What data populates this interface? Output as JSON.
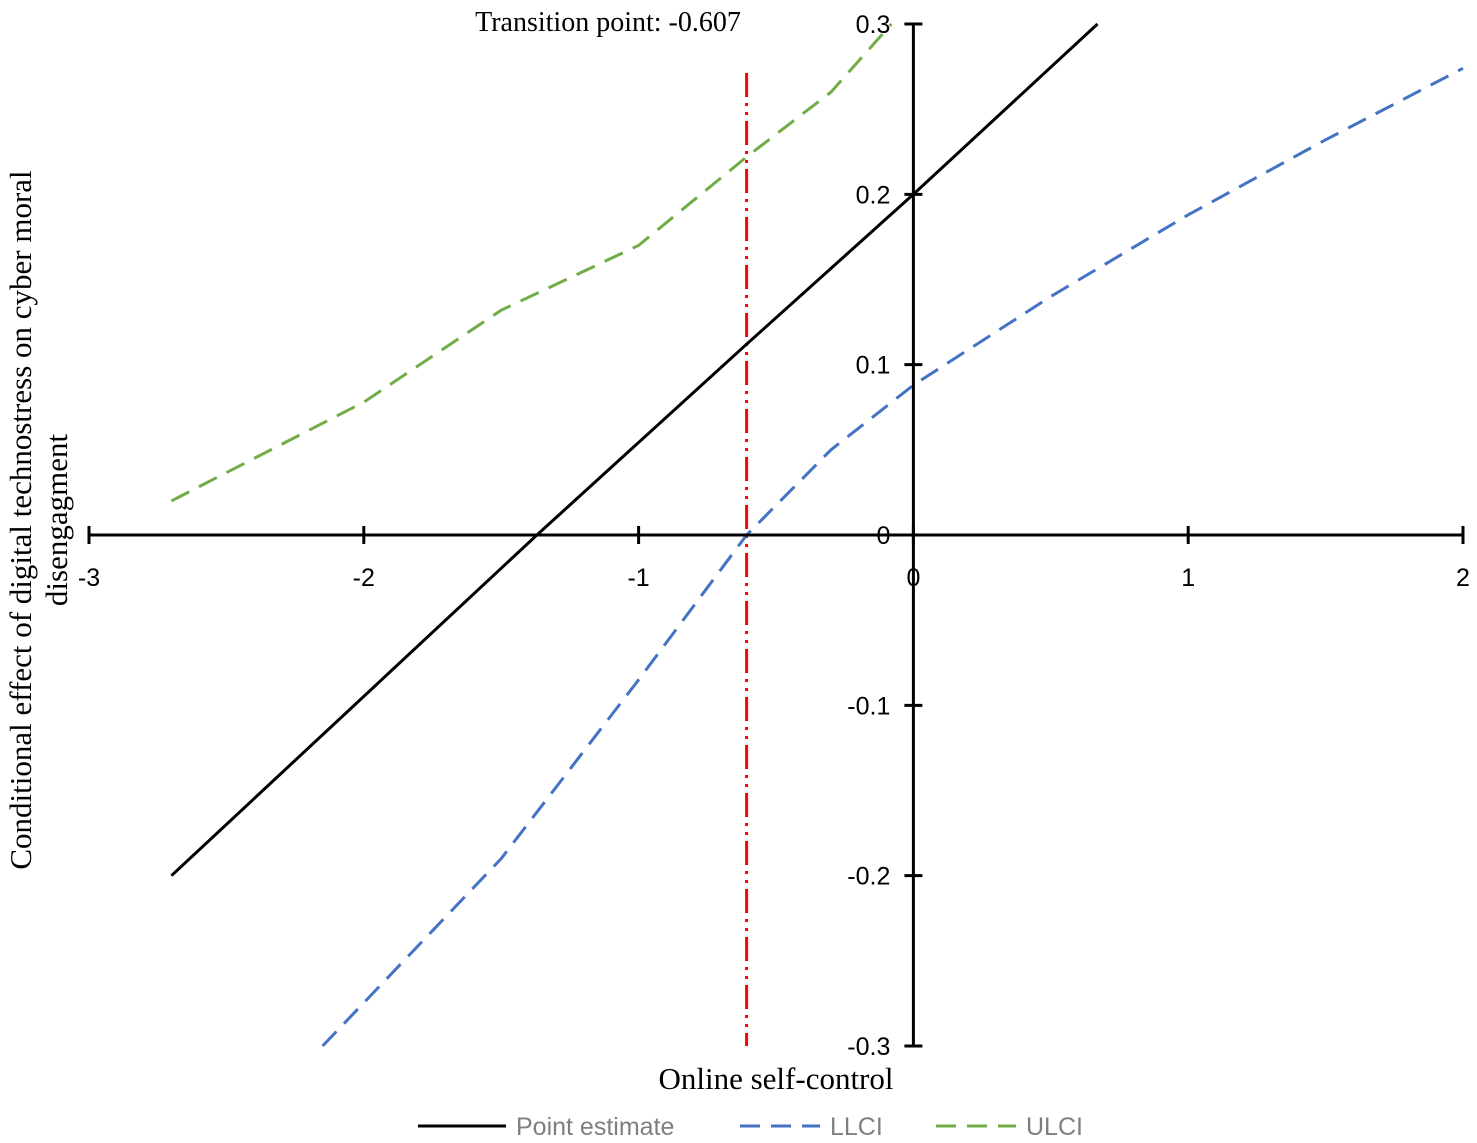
{
  "chart_data": {
    "type": "line",
    "xlabel": "Online self-control",
    "ylabel": "Conditional effect of digital technostress on cyber moral disengagment",
    "xlim": [
      -3,
      2
    ],
    "ylim": [
      -0.3,
      0.3
    ],
    "x_ticks": [
      -3,
      -2,
      -1,
      0,
      1,
      2
    ],
    "x_tick_labels": [
      "-3",
      "-2",
      "-1",
      "0",
      "1",
      "2"
    ],
    "y_ticks": [
      -0.3,
      -0.2,
      -0.1,
      0,
      0.1,
      0.2,
      0.3
    ],
    "y_tick_labels": [
      "-0.3",
      "-0.2",
      "-0.1",
      "0",
      "0.1",
      "0.2",
      "0.3"
    ],
    "grid": false,
    "legend_position": "bottom",
    "annotation": {
      "text": "Transition point: -0.607",
      "x": -0.607,
      "color": "#ff0000"
    },
    "series": [
      {
        "name": "Point estimate",
        "color": "#000000",
        "style": "solid",
        "x": [
          -2.7,
          -1.37,
          -0.607,
          0,
          0.67
        ],
        "y": [
          -0.2,
          0.0,
          0.112,
          0.2,
          0.3
        ]
      },
      {
        "name": "LLCI",
        "color": "#4472c4",
        "style": "dashed",
        "x": [
          -2.15,
          -1.5,
          -1.0,
          -0.607,
          -0.3,
          0,
          0.5,
          1.0,
          1.5,
          2.0
        ],
        "y": [
          -0.3,
          -0.19,
          -0.085,
          0.0,
          0.05,
          0.088,
          0.14,
          0.188,
          0.232,
          0.274
        ]
      },
      {
        "name": "ULCI",
        "color": "#70ad47",
        "style": "dashed",
        "x": [
          -2.7,
          -2.0,
          -1.5,
          -1.0,
          -0.607,
          -0.3,
          -0.08
        ],
        "y": [
          0.02,
          0.078,
          0.132,
          0.17,
          0.222,
          0.26,
          0.3
        ]
      }
    ]
  }
}
